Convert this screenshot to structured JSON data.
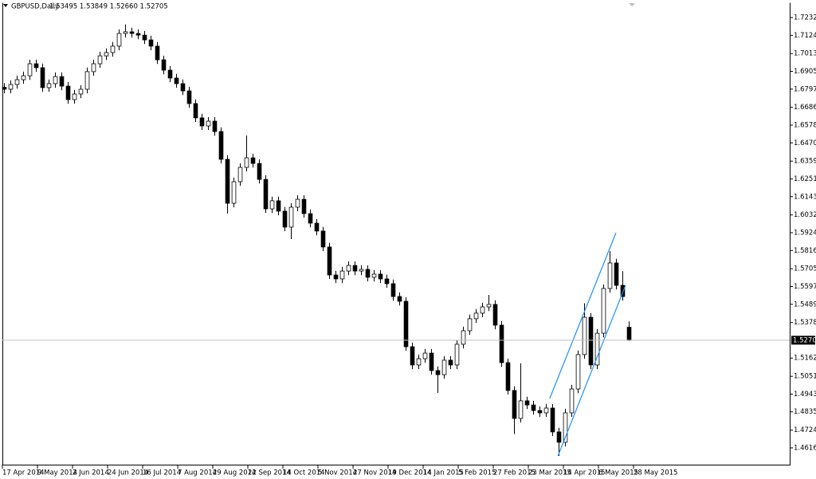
{
  "chart_data": {
    "type": "candlestick",
    "title": "GBPUSD,Daily",
    "subtitle": "1.53495 1.53849 1.52660 1.52705",
    "bull_color": "#ffffff",
    "bear_color": "#000000",
    "open": [
      1.6808,
      1.6796,
      1.6825,
      1.6854,
      1.6878,
      1.6951,
      1.6927,
      1.6806,
      1.683,
      1.6873,
      1.6815,
      1.6733,
      1.6767,
      1.6796,
      1.6903,
      1.6951,
      1.6999,
      1.7019,
      1.7058,
      1.7135,
      1.7145,
      1.7135,
      1.7125,
      1.7096,
      1.7058,
      1.6975,
      1.6912,
      1.6864,
      1.683,
      1.6786,
      1.6709,
      1.6622,
      1.6573,
      1.6602,
      1.6539,
      1.637,
      1.6103,
      1.6234,
      1.6321,
      1.6379,
      1.6345,
      1.6248,
      1.6069,
      1.6118,
      1.6055,
      1.5958,
      1.6079,
      1.6127,
      1.604,
      1.5982,
      1.5934,
      1.5837,
      1.5667,
      1.5643,
      1.5691,
      1.5725,
      1.5691,
      1.5701,
      1.5653,
      1.5672,
      1.5643,
      1.5614,
      1.5536,
      1.5507,
      1.5231,
      1.512,
      1.5158,
      1.5192,
      1.5086,
      1.5061,
      1.5149,
      1.512,
      1.5246,
      1.5328,
      1.5401,
      1.5435,
      1.5473,
      1.5488,
      1.5362,
      1.5134,
      1.4965,
      1.4795,
      1.4902,
      1.4877,
      1.4843,
      1.4829,
      1.4858,
      1.4713,
      1.465,
      1.4829,
      1.4974,
      1.5183,
      1.541,
      1.512,
      1.5313,
      1.5585,
      1.574,
      1.5604,
      1.53495
    ],
    "high": [
      1.6833,
      1.685,
      1.6879,
      1.6903,
      1.6976,
      1.6976,
      1.6952,
      1.6855,
      1.6898,
      1.6898,
      1.684,
      1.6792,
      1.6821,
      1.6928,
      1.6976,
      1.7024,
      1.7044,
      1.7083,
      1.716,
      1.719,
      1.717,
      1.716,
      1.715,
      1.7121,
      1.7083,
      1.7,
      1.6937,
      1.6889,
      1.6855,
      1.6811,
      1.6734,
      1.6647,
      1.6627,
      1.6627,
      1.6564,
      1.6395,
      1.6259,
      1.6346,
      1.6515,
      1.6404,
      1.637,
      1.6273,
      1.6143,
      1.6143,
      1.608,
      1.6104,
      1.6152,
      1.6152,
      1.6065,
      1.6007,
      1.5959,
      1.5862,
      1.5692,
      1.5716,
      1.575,
      1.575,
      1.5726,
      1.5726,
      1.5697,
      1.5697,
      1.5668,
      1.5639,
      1.5561,
      1.5532,
      1.5256,
      1.5183,
      1.5217,
      1.5217,
      1.5111,
      1.5174,
      1.5174,
      1.5271,
      1.5353,
      1.5426,
      1.546,
      1.5498,
      1.5546,
      1.5513,
      1.5387,
      1.5159,
      1.499,
      1.513,
      1.4927,
      1.4902,
      1.4868,
      1.4883,
      1.4883,
      1.4738,
      1.4854,
      1.4999,
      1.5208,
      1.5495,
      1.5435,
      1.5338,
      1.561,
      1.5812,
      1.5765,
      1.569,
      1.53849
    ],
    "low": [
      1.6771,
      1.6771,
      1.68,
      1.6829,
      1.6853,
      1.6902,
      1.6781,
      1.6781,
      1.6805,
      1.679,
      1.6708,
      1.6708,
      1.6742,
      1.6771,
      1.6878,
      1.6926,
      1.6974,
      1.6994,
      1.7033,
      1.711,
      1.711,
      1.71,
      1.7071,
      1.7033,
      1.695,
      1.6887,
      1.6839,
      1.6805,
      1.6761,
      1.6684,
      1.6597,
      1.6548,
      1.6548,
      1.6514,
      1.6345,
      1.604,
      1.6078,
      1.6209,
      1.6296,
      1.632,
      1.6223,
      1.6044,
      1.6044,
      1.603,
      1.5933,
      1.5885,
      1.6054,
      1.6015,
      1.5957,
      1.5909,
      1.5812,
      1.5642,
      1.5618,
      1.5618,
      1.5666,
      1.5666,
      1.5666,
      1.5628,
      1.5628,
      1.5618,
      1.5589,
      1.5511,
      1.5482,
      1.5206,
      1.5095,
      1.5095,
      1.5133,
      1.5061,
      1.495,
      1.5036,
      1.5095,
      1.5095,
      1.5221,
      1.5303,
      1.5376,
      1.541,
      1.5448,
      1.5337,
      1.5109,
      1.494,
      1.47,
      1.477,
      1.4852,
      1.4818,
      1.4804,
      1.4804,
      1.4688,
      1.4567,
      1.4625,
      1.4804,
      1.4949,
      1.5158,
      1.5095,
      1.5095,
      1.5288,
      1.556,
      1.5579,
      1.5511,
      1.5266
    ],
    "close": [
      1.6796,
      1.6825,
      1.6854,
      1.6878,
      1.6951,
      1.6927,
      1.6806,
      1.683,
      1.6873,
      1.6815,
      1.6733,
      1.6767,
      1.6796,
      1.6903,
      1.6951,
      1.6999,
      1.7019,
      1.7058,
      1.7135,
      1.7145,
      1.7135,
      1.7125,
      1.7096,
      1.7058,
      1.6975,
      1.6912,
      1.6864,
      1.683,
      1.6786,
      1.6709,
      1.6622,
      1.6573,
      1.6602,
      1.6539,
      1.637,
      1.6103,
      1.6234,
      1.6321,
      1.6379,
      1.6345,
      1.6248,
      1.6069,
      1.6118,
      1.6055,
      1.5958,
      1.6079,
      1.6127,
      1.604,
      1.5982,
      1.5934,
      1.5837,
      1.5667,
      1.5643,
      1.5691,
      1.5725,
      1.5691,
      1.5701,
      1.5653,
      1.5672,
      1.5643,
      1.5614,
      1.5536,
      1.5507,
      1.5231,
      1.512,
      1.5158,
      1.5192,
      1.5086,
      1.5061,
      1.5149,
      1.512,
      1.5246,
      1.5328,
      1.5401,
      1.5435,
      1.5473,
      1.5488,
      1.5362,
      1.5134,
      1.4965,
      1.4795,
      1.4902,
      1.4877,
      1.4843,
      1.4829,
      1.4858,
      1.4713,
      1.465,
      1.4829,
      1.4974,
      1.5183,
      1.541,
      1.512,
      1.5313,
      1.5585,
      1.574,
      1.5604,
      1.5536,
      1.52705
    ],
    "last_price": 1.52705,
    "trendlines": [
      {
        "color": "#1e90ff",
        "x": [
          85.6,
          96
        ],
        "y": [
          1.4916,
          1.5924
        ]
      },
      {
        "color": "#1e90ff",
        "x": [
          86.9,
          97.5
        ],
        "y": [
          1.4567,
          1.5604
        ]
      }
    ],
    "xlim": [
      -0.25,
      123.25
    ],
    "xticks": [
      {
        "value": -0.25,
        "label": "17 Apr 2014"
      },
      {
        "value": 5.25,
        "label": "9 May 2014"
      },
      {
        "value": 10.75,
        "label": "2 Jun 2014"
      },
      {
        "value": 16.25,
        "label": "24 Jun 2014"
      },
      {
        "value": 21.75,
        "label": "16 Jul 2014"
      },
      {
        "value": 27.25,
        "label": "7 Aug 2014"
      },
      {
        "value": 32.75,
        "label": "29 Aug 2014"
      },
      {
        "value": 38.25,
        "label": "22 Sep 2014"
      },
      {
        "value": 43.75,
        "label": "14 Oct 2014"
      },
      {
        "value": 49.25,
        "label": "5 Nov 2014"
      },
      {
        "value": 54.75,
        "label": "27 Nov 2014"
      },
      {
        "value": 60.25,
        "label": "19 Dec 2014"
      },
      {
        "value": 65.75,
        "label": "14 Jan 2015"
      },
      {
        "value": 71.25,
        "label": "5 Feb 2015"
      },
      {
        "value": 76.75,
        "label": "27 Feb 2015"
      },
      {
        "value": 82.25,
        "label": "23 Mar 2015"
      },
      {
        "value": 87.75,
        "label": "14 Apr 2015"
      },
      {
        "value": 93.25,
        "label": "6 May 2015"
      },
      {
        "value": 98.75,
        "label": "28 May 2015"
      }
    ],
    "ylim": [
      1.4514,
      1.7324
    ],
    "yticks": [
      {
        "value": 1.7232,
        "label": "1.72320"
      },
      {
        "value": 1.7124,
        "label": "1.71240"
      },
      {
        "value": 1.7013,
        "label": "1.70130"
      },
      {
        "value": 1.6905,
        "label": "1.69050"
      },
      {
        "value": 1.6797,
        "label": "1.67970"
      },
      {
        "value": 1.6686,
        "label": "1.66860"
      },
      {
        "value": 1.6578,
        "label": "1.65780"
      },
      {
        "value": 1.647,
        "label": "1.64700"
      },
      {
        "value": 1.6359,
        "label": "1.63590"
      },
      {
        "value": 1.6251,
        "label": "1.62510"
      },
      {
        "value": 1.6143,
        "label": "1.61430"
      },
      {
        "value": 1.6032,
        "label": "1.60320"
      },
      {
        "value": 1.5924,
        "label": "1.59240"
      },
      {
        "value": 1.5816,
        "label": "1.58160"
      },
      {
        "value": 1.5705,
        "label": "1.57050"
      },
      {
        "value": 1.5597,
        "label": "1.55970"
      },
      {
        "value": 1.5489,
        "label": "1.54890"
      },
      {
        "value": 1.5378,
        "label": "1.53780"
      },
      {
        "value": 1.5162,
        "label": "1.51620"
      },
      {
        "value": 1.5051,
        "label": "1.50510"
      },
      {
        "value": 1.4943,
        "label": "1.49430"
      },
      {
        "value": 1.4835,
        "label": "1.48350"
      },
      {
        "value": 1.4724,
        "label": "1.47240"
      },
      {
        "value": 1.4616,
        "label": "1.46160"
      }
    ]
  }
}
